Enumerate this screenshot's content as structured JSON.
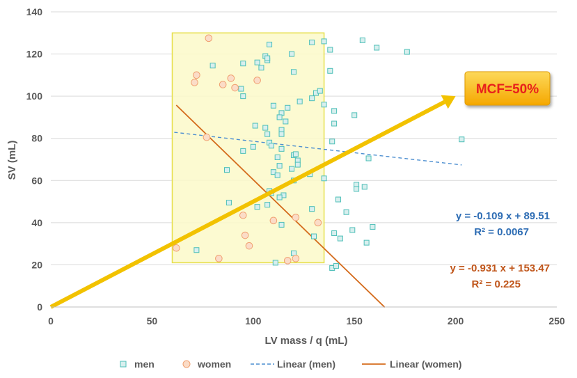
{
  "chart_data": {
    "type": "scatter",
    "title": "",
    "xlabel": "LV mass / q (mL)",
    "ylabel": "SV (mL)",
    "xlim": [
      0,
      250
    ],
    "ylim": [
      0,
      140
    ],
    "x_ticks": [
      0,
      50,
      100,
      150,
      200,
      250
    ],
    "y_ticks": [
      0,
      20,
      40,
      60,
      80,
      100,
      120,
      140
    ],
    "grid": "horizontal",
    "legend_position": "bottom",
    "highlight_box": {
      "x_range": [
        60,
        135
      ],
      "y_range": [
        21,
        130
      ]
    },
    "series": [
      {
        "name": "men",
        "marker": "square",
        "color": "#4dbfb8",
        "points": [
          [
            80,
            114.5
          ],
          [
            95,
            115.5
          ],
          [
            102,
            116
          ],
          [
            107,
            117
          ],
          [
            106,
            119
          ],
          [
            107,
            118
          ],
          [
            108,
            124.5
          ],
          [
            119,
            120
          ],
          [
            129,
            125.5
          ],
          [
            135,
            126
          ],
          [
            154,
            126.5
          ],
          [
            161,
            123
          ],
          [
            176,
            121
          ],
          [
            138,
            122
          ],
          [
            138,
            112
          ],
          [
            104,
            113.5
          ],
          [
            120,
            111.5
          ],
          [
            94,
            103.5
          ],
          [
            95,
            100
          ],
          [
            129,
            99
          ],
          [
            131,
            101.5
          ],
          [
            133,
            102.5
          ],
          [
            135,
            96
          ],
          [
            123,
            97.5
          ],
          [
            110,
            95.5
          ],
          [
            117,
            94.5
          ],
          [
            114,
            92
          ],
          [
            140,
            93
          ],
          [
            150,
            91
          ],
          [
            113,
            90
          ],
          [
            116,
            88
          ],
          [
            140,
            87
          ],
          [
            101,
            86
          ],
          [
            106,
            85
          ],
          [
            114,
            84
          ],
          [
            114,
            82
          ],
          [
            107,
            82
          ],
          [
            108,
            78
          ],
          [
            109,
            76.5
          ],
          [
            139,
            78.5
          ],
          [
            120,
            72
          ],
          [
            121,
            72.5
          ],
          [
            112,
            71
          ],
          [
            114,
            75
          ],
          [
            122,
            69.5
          ],
          [
            122,
            67.5
          ],
          [
            113,
            67
          ],
          [
            119,
            65.5
          ],
          [
            110,
            64
          ],
          [
            112,
            62.5
          ],
          [
            128,
            63
          ],
          [
            135,
            61
          ],
          [
            157,
            70.5
          ],
          [
            203,
            79.5
          ],
          [
            87,
            65
          ],
          [
            95,
            74
          ],
          [
            100,
            76
          ],
          [
            120,
            60
          ],
          [
            151,
            58
          ],
          [
            155,
            57
          ],
          [
            151,
            56
          ],
          [
            108,
            55
          ],
          [
            109,
            54
          ],
          [
            115,
            53
          ],
          [
            113,
            52
          ],
          [
            142,
            51
          ],
          [
            107,
            48.5
          ],
          [
            88,
            49.5
          ],
          [
            102,
            47.5
          ],
          [
            129,
            46.5
          ],
          [
            146,
            45
          ],
          [
            114,
            39
          ],
          [
            130,
            33.5
          ],
          [
            140,
            35
          ],
          [
            143,
            32.5
          ],
          [
            149,
            36.5
          ],
          [
            159,
            38
          ],
          [
            156,
            30.5
          ],
          [
            72,
            27
          ],
          [
            120,
            25.5
          ],
          [
            111,
            21
          ],
          [
            139,
            18.5
          ],
          [
            141,
            19.5
          ]
        ]
      },
      {
        "name": "women",
        "marker": "circle",
        "color": "#f0a070",
        "points": [
          [
            78,
            127.5
          ],
          [
            72,
            110
          ],
          [
            71,
            106.5
          ],
          [
            85,
            105.5
          ],
          [
            89,
            108.5
          ],
          [
            91,
            104
          ],
          [
            102,
            107.5
          ],
          [
            77,
            80.5
          ],
          [
            95,
            43.5
          ],
          [
            96,
            34
          ],
          [
            110,
            41
          ],
          [
            121,
            42.5
          ],
          [
            132,
            40
          ],
          [
            98,
            29
          ],
          [
            62,
            28
          ],
          [
            83,
            23
          ],
          [
            117,
            22
          ],
          [
            121,
            23
          ]
        ]
      },
      {
        "name": "Linear (men)",
        "type": "line",
        "style": "dashed",
        "color": "#4c8ed0",
        "x_range": [
          61,
          203
        ],
        "slope": -0.109,
        "intercept": 89.51
      },
      {
        "name": "Linear (women)",
        "type": "line",
        "style": "solid",
        "color": "#d46b1c",
        "x_range": [
          62,
          165
        ],
        "slope": -0.931,
        "intercept": 153.47
      }
    ],
    "annotations": {
      "men_equation": "y = -0.109 x + 89.51",
      "men_r2": "R² = 0.0067",
      "women_equation": "y = -0.931 x + 153.47",
      "women_r2": "R² = 0.225",
      "mcf_label": "MCF=50%",
      "mcf_arrow": {
        "from": [
          0,
          0
        ],
        "to": [
          200,
          100
        ]
      }
    },
    "colors": {
      "men_eq": "#2e6db4",
      "women_eq": "#c0561b",
      "arrow": "#f2c200",
      "label_bg": "#f7b800",
      "label_text": "#e8201c",
      "box_fill": "#fbf9c9",
      "box_stroke": "#e6df4a",
      "grid": "#d9d9d9"
    }
  }
}
